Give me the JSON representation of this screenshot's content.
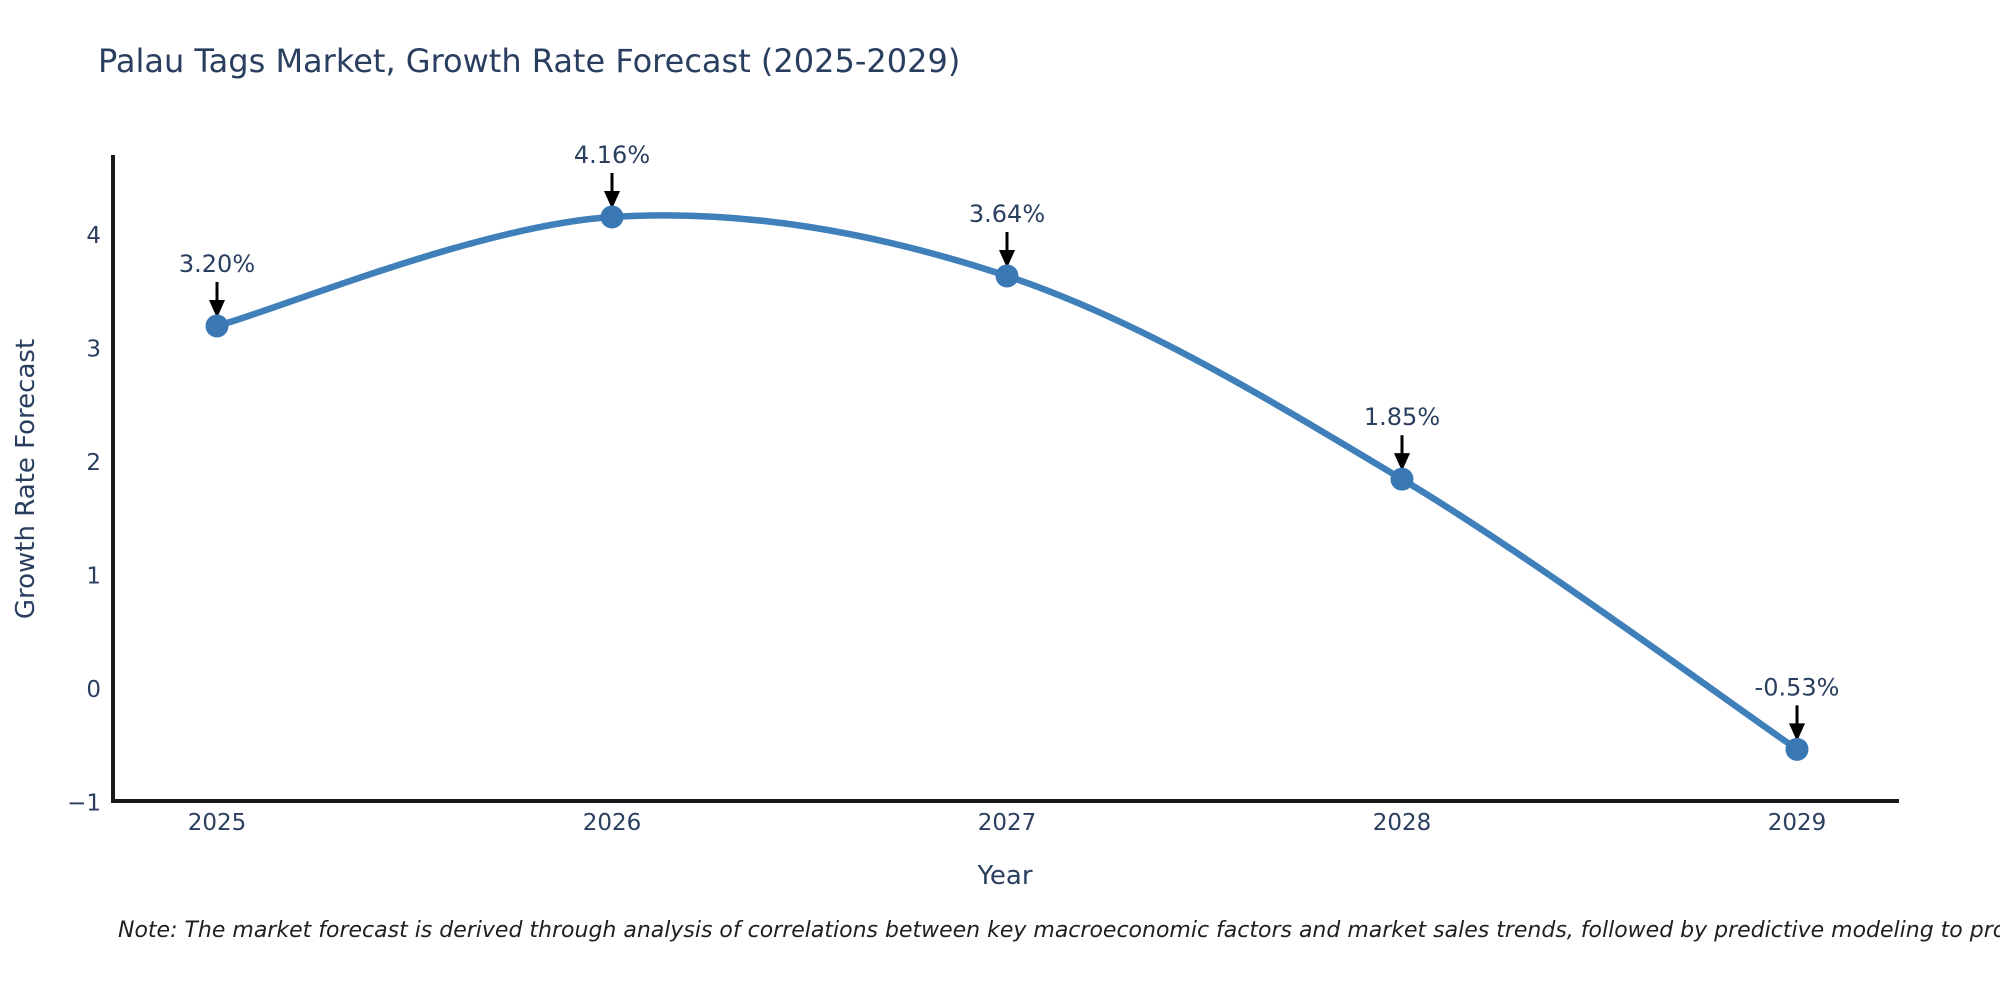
{
  "chart_data": {
    "type": "line",
    "title": "Palau Tags Market, Growth Rate Forecast (2025-2029)",
    "xlabel": "Year",
    "ylabel": "Growth Rate Forecast",
    "x": [
      2025,
      2026,
      2027,
      2028,
      2029
    ],
    "series": [
      {
        "name": "Growth Rate Forecast",
        "values": [
          3.2,
          4.16,
          3.64,
          1.85,
          -0.53
        ]
      }
    ],
    "point_labels": [
      "3.20%",
      "4.16%",
      "3.64%",
      "1.85%",
      "-0.53%"
    ],
    "xticks": [
      "2025",
      "2026",
      "2027",
      "2028",
      "2029"
    ],
    "yticks": {
      "values": [
        4,
        3,
        2,
        1,
        0,
        -1
      ],
      "labels": [
        "4",
        "3",
        "2",
        "1",
        "0",
        "−1"
      ]
    },
    "xlim": [
      2024.74,
      2029.25
    ],
    "ylim": [
      -1.03,
      4.69
    ],
    "grid": false,
    "legend": "none",
    "line_shape": "spline",
    "annotation_style": "value label with down arrow to each point",
    "colors": {
      "line": "#3f7fba",
      "marker": "#3a78b5",
      "axis": "#1a1a1a",
      "text": "#2a3f5f",
      "arrow": "#000000",
      "background": "#ffffff"
    },
    "note": "Note: The market forecast is derived through analysis of correlations between key macroeconomic factors and market sales trends, followed by predictive modeling to project future sales"
  }
}
